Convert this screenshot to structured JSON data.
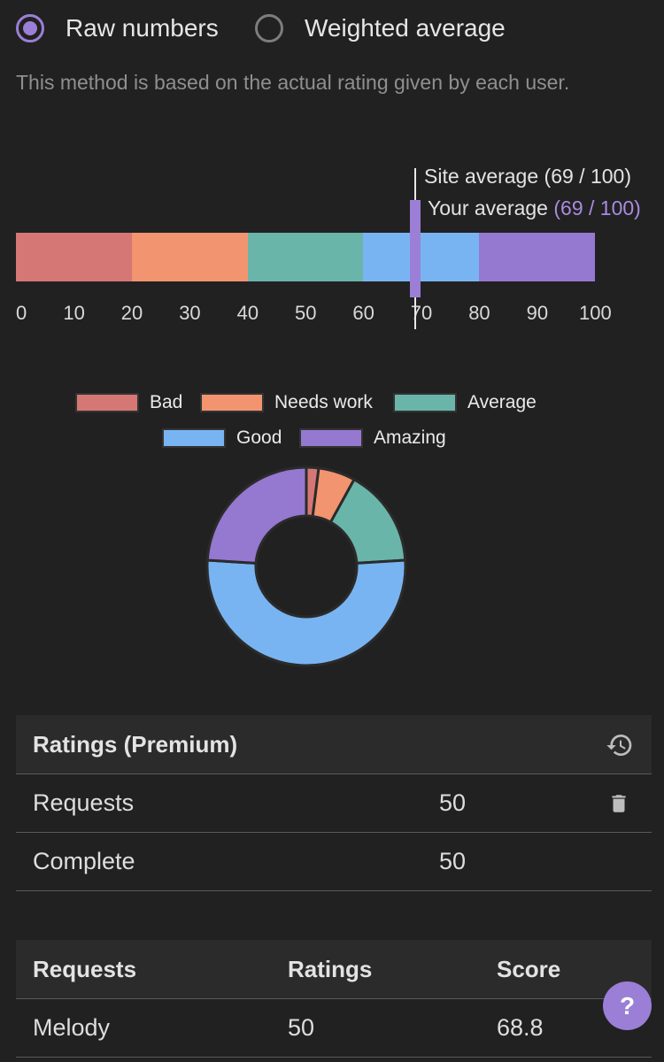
{
  "rating_method": {
    "options": [
      {
        "label": "Raw numbers",
        "selected": true
      },
      {
        "label": "Weighted average",
        "selected": false
      }
    ],
    "description": "This method is based on the actual rating given by each user."
  },
  "range_chart": {
    "segments": [
      {
        "name": "Bad",
        "from": 0,
        "to": 20,
        "color": "#d47775"
      },
      {
        "name": "Needs work",
        "from": 20,
        "to": 40,
        "color": "#f29470"
      },
      {
        "name": "Average",
        "from": 40,
        "to": 60,
        "color": "#6ab5aa"
      },
      {
        "name": "Good",
        "from": 60,
        "to": 80,
        "color": "#79b4f2"
      },
      {
        "name": "Amazing",
        "from": 80,
        "to": 100,
        "color": "#9578d0"
      }
    ],
    "ticks": [
      "0",
      "10",
      "20",
      "30",
      "40",
      "50",
      "60",
      "70",
      "80",
      "90",
      "100"
    ],
    "site_average_label": "Site average (69 / 100)",
    "site_average_value": 69,
    "your_average_prefix": "Your average",
    "your_average_value_text": "(69 / 100)",
    "your_average_value": 69
  },
  "chart_data": {
    "type": "pie",
    "donut": true,
    "legend": "top",
    "categories": [
      "Bad",
      "Needs work",
      "Average",
      "Good",
      "Amazing"
    ],
    "values": [
      2,
      6,
      16,
      52,
      24
    ],
    "colors": [
      "#d47775",
      "#f29470",
      "#6ab5aa",
      "#79b4f2",
      "#9578d0"
    ]
  },
  "ratings_premium": {
    "title": "Ratings (Premium)",
    "header_icon": "history-icon",
    "rows": [
      {
        "label": "Requests",
        "value": "50",
        "icon": "trash-icon"
      },
      {
        "label": "Complete",
        "value": "50"
      }
    ]
  },
  "requests_table": {
    "columns": [
      "Requests",
      "Ratings",
      "Score"
    ],
    "rows": [
      {
        "request": "Melody",
        "ratings": "50",
        "score": "68.8"
      }
    ]
  },
  "help_button": {
    "label": "?",
    "color": "#9b7fd6"
  }
}
